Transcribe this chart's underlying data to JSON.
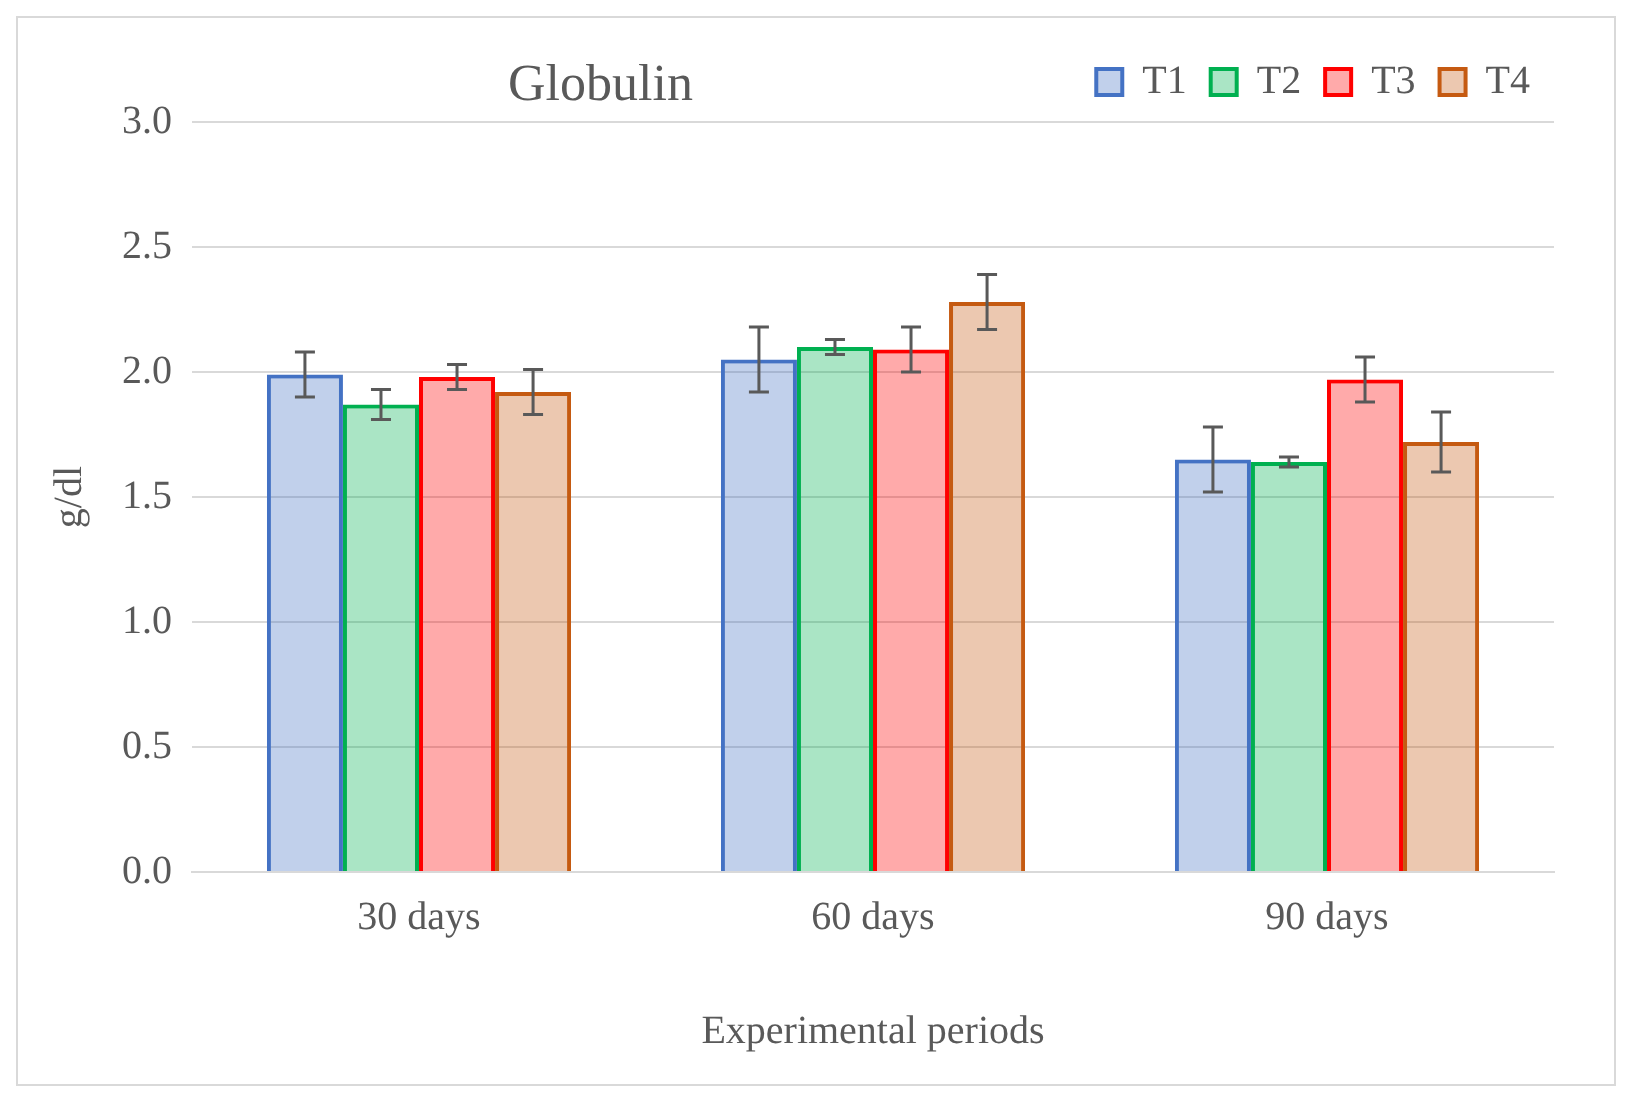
{
  "chart_data": {
    "type": "bar",
    "title": "Globulin",
    "xlabel": "Experimental periods",
    "ylabel": "g/dl",
    "categories": [
      "30 days",
      "60 days",
      "90 days"
    ],
    "series": [
      {
        "name": "T1",
        "color": "#4472c4",
        "values": [
          1.99,
          2.05,
          1.65
        ],
        "errors": [
          0.09,
          0.13,
          0.13
        ]
      },
      {
        "name": "T2",
        "color": "#00b050",
        "values": [
          1.87,
          2.1,
          1.64
        ],
        "errors": [
          0.06,
          0.03,
          0.02
        ]
      },
      {
        "name": "T3",
        "color": "#ff0000",
        "values": [
          1.98,
          2.09,
          1.97
        ],
        "errors": [
          0.05,
          0.09,
          0.09
        ]
      },
      {
        "name": "T4",
        "color": "#c55a11",
        "values": [
          1.92,
          2.28,
          1.72
        ],
        "errors": [
          0.09,
          0.11,
          0.12
        ]
      }
    ],
    "ylim": [
      0,
      3
    ],
    "yticks": [
      {
        "value": 0,
        "label": "0.0"
      },
      0.5,
      {
        "value": 1,
        "label": "1.0"
      },
      1.5,
      {
        "value": 2,
        "label": "2.0"
      },
      2.5,
      {
        "value": 3,
        "label": "3.0"
      }
    ],
    "grid": "y",
    "legend": "top right"
  }
}
